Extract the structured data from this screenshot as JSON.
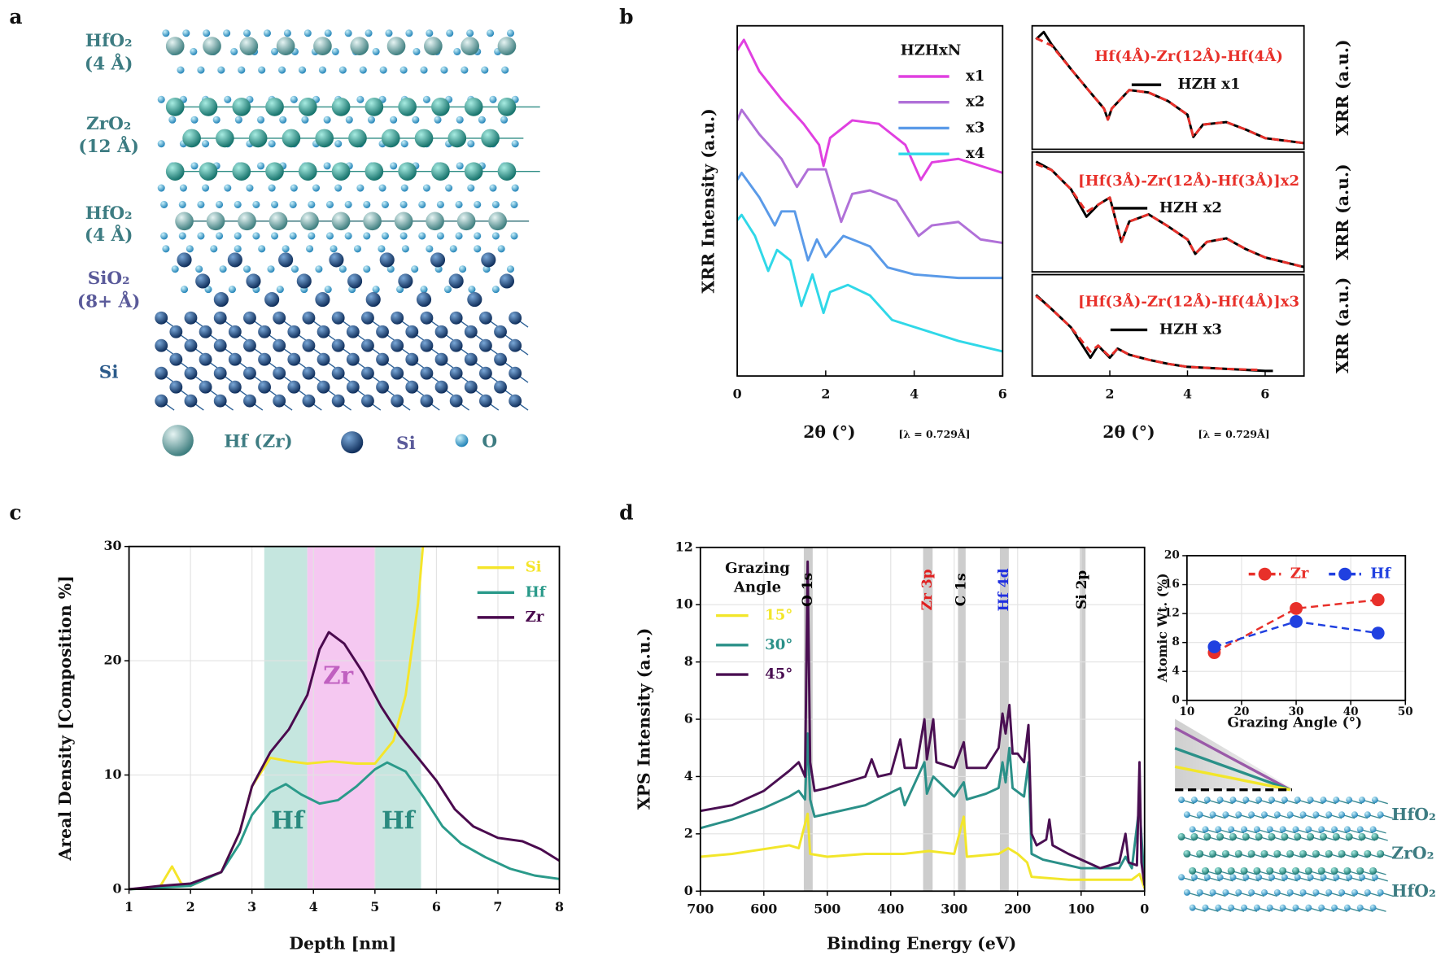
{
  "panel_labels": [
    "a",
    "b",
    "c",
    "d"
  ],
  "structure": {
    "layers": [
      {
        "label": "HfO₂",
        "thickness": "(4 Å)"
      },
      {
        "label": "ZrO₂",
        "thickness": "(12 Å)"
      },
      {
        "label": "HfO₂",
        "thickness": "(4 Å)"
      },
      {
        "label": "SiO₂",
        "thickness": "(8+ Å)"
      },
      {
        "label": "Si"
      }
    ],
    "legend": [
      "Hf (Zr)",
      "Si",
      "O"
    ]
  },
  "layer_stack": {
    "layers": [
      "HfO₂",
      "ZrO₂",
      "HfO₂"
    ]
  },
  "chart_data": [
    {
      "type": "line",
      "ylabel": "XRR Intensity (a.u.)",
      "xlabel": "2θ (°)",
      "xlabel_note": "[λ = 0.729Å]",
      "legend_title": "HZHxN",
      "xlim": [
        0,
        6
      ],
      "xticks": [
        0,
        2,
        4,
        6
      ],
      "ylim": [
        0,
        10
      ],
      "series": [
        {
          "name": "x1",
          "color": "#e040e0",
          "x": [
            0,
            0.15,
            0.5,
            1.0,
            1.5,
            1.85,
            1.95,
            2.1,
            2.6,
            3.2,
            3.8,
            4.15,
            4.4,
            5.0,
            5.5,
            6.0
          ],
          "values": [
            9.3,
            9.6,
            8.7,
            7.9,
            7.2,
            6.6,
            6.0,
            6.8,
            7.3,
            7.2,
            6.6,
            5.6,
            6.1,
            6.2,
            6.0,
            5.8
          ]
        },
        {
          "name": "x2",
          "color": "#b070d8",
          "x": [
            0,
            0.1,
            0.5,
            1.0,
            1.35,
            1.6,
            2.0,
            2.35,
            2.6,
            3.0,
            3.6,
            4.1,
            4.4,
            5.0,
            5.5,
            6.0
          ],
          "values": [
            7.3,
            7.6,
            6.9,
            6.2,
            5.4,
            5.9,
            5.9,
            4.4,
            5.2,
            5.3,
            5.0,
            4.0,
            4.3,
            4.4,
            3.9,
            3.8
          ]
        },
        {
          "name": "x3",
          "color": "#5a9ae8",
          "x": [
            0,
            0.1,
            0.5,
            0.85,
            1.0,
            1.3,
            1.6,
            1.8,
            2.0,
            2.4,
            3.0,
            3.4,
            4.0,
            5.0,
            6.0
          ],
          "values": [
            5.6,
            5.8,
            5.1,
            4.3,
            4.7,
            4.7,
            3.3,
            3.9,
            3.4,
            4.0,
            3.7,
            3.1,
            2.9,
            2.8,
            2.8
          ]
        },
        {
          "name": "x4",
          "color": "#30d8e8",
          "x": [
            0,
            0.1,
            0.4,
            0.7,
            0.9,
            1.2,
            1.45,
            1.7,
            1.95,
            2.1,
            2.5,
            3.0,
            3.5,
            4.0,
            5.0,
            6.0
          ],
          "values": [
            4.45,
            4.6,
            4.0,
            3.0,
            3.6,
            3.3,
            2.0,
            2.9,
            1.8,
            2.4,
            2.6,
            2.3,
            1.6,
            1.4,
            1.0,
            0.7
          ]
        }
      ]
    },
    {
      "type": "line",
      "title": "Hf(4Å)-Zr(12Å)-Hf(4Å)",
      "title_color": "#e8302a",
      "ylabel": "XRR (a.u.)",
      "xlim": [
        0,
        7
      ],
      "ylim": [
        0,
        10
      ],
      "series": [
        {
          "name": "HZH x1",
          "color": "#000000",
          "x": [
            0.1,
            0.3,
            0.5,
            1.0,
            1.5,
            1.85,
            1.95,
            2.05,
            2.5,
            3.0,
            3.5,
            4.0,
            4.15,
            4.4,
            5.0,
            5.5,
            6.0,
            6.5,
            7.0
          ],
          "values": [
            8.9,
            9.5,
            8.5,
            6.5,
            4.6,
            3.3,
            2.4,
            3.3,
            4.8,
            4.6,
            3.9,
            2.8,
            1.0,
            2.0,
            2.2,
            1.6,
            0.9,
            0.7,
            0.5
          ]
        },
        {
          "color": "#e8302a",
          "dash": true,
          "x": [
            0.1,
            0.5,
            1.0,
            1.5,
            1.85,
            1.95,
            2.05,
            2.5,
            3.0,
            3.5,
            4.0,
            4.15,
            4.4,
            5.0,
            5.5,
            6.0,
            6.5,
            7.0
          ],
          "values": [
            9.0,
            8.4,
            6.5,
            4.6,
            3.3,
            2.4,
            3.3,
            4.8,
            4.6,
            3.9,
            2.8,
            1.0,
            2.0,
            2.2,
            1.6,
            0.9,
            0.7,
            0.5
          ]
        }
      ]
    },
    {
      "type": "line",
      "title": "[Hf(3Å)-Zr(12Å)-Hf(3Å)]x2",
      "title_color": "#e8302a",
      "ylabel": "XRR (a.u.)",
      "xlim": [
        0,
        7
      ],
      "ylim": [
        0,
        10
      ],
      "series": [
        {
          "name": "HZH x2",
          "color": "#000000",
          "x": [
            0.1,
            0.5,
            1.0,
            1.4,
            1.7,
            2.0,
            2.3,
            2.5,
            3.0,
            3.5,
            4.0,
            4.2,
            4.5,
            5.0,
            5.5,
            6.0,
            7.0
          ],
          "values": [
            9.2,
            8.5,
            6.9,
            4.6,
            5.6,
            6.2,
            2.5,
            4.2,
            4.8,
            3.8,
            2.7,
            1.5,
            2.5,
            2.8,
            1.9,
            1.2,
            0.4
          ]
        },
        {
          "color": "#e8302a",
          "dash": true,
          "x": [
            0.1,
            0.5,
            1.0,
            1.4,
            1.7,
            2.0,
            2.3,
            2.5,
            3.0,
            3.5,
            4.0,
            4.2,
            4.5,
            5.0,
            5.5,
            6.0,
            7.0
          ],
          "values": [
            9.0,
            8.5,
            6.9,
            5.0,
            5.6,
            6.2,
            2.5,
            4.2,
            4.8,
            3.8,
            2.7,
            1.5,
            2.5,
            2.8,
            1.9,
            1.2,
            0.4
          ]
        }
      ]
    },
    {
      "type": "line",
      "title": "[Hf(3Å)-Zr(12Å)-Hf(4Å)]x3",
      "title_color": "#e8302a",
      "ylabel": "XRR (a.u.)",
      "xlabel": "2θ (°)",
      "xlabel_note": "[λ = 0.729Å]",
      "xlim": [
        0,
        7
      ],
      "xticks": [
        2,
        4,
        6
      ],
      "ylim": [
        0,
        10
      ],
      "series": [
        {
          "name": "HZH x3",
          "color": "#000000",
          "x": [
            0.1,
            0.5,
            1.0,
            1.5,
            1.7,
            2.0,
            2.2,
            2.5,
            3.0,
            3.5,
            4.0,
            5.0,
            6.0,
            6.2
          ],
          "values": [
            8.0,
            6.6,
            4.8,
            1.8,
            3.0,
            1.8,
            2.7,
            2.1,
            1.6,
            1.2,
            0.9,
            0.7,
            0.5,
            0.5
          ]
        },
        {
          "color": "#e8302a",
          "dash": true,
          "x": [
            0.1,
            0.5,
            1.0,
            1.5,
            1.7,
            2.0,
            2.2,
            2.5,
            3.0,
            3.5,
            4.0,
            5.0,
            5.8
          ],
          "values": [
            7.9,
            6.6,
            4.8,
            2.4,
            3.0,
            1.9,
            2.7,
            2.1,
            1.6,
            1.2,
            0.9,
            0.7,
            0.6
          ]
        }
      ]
    },
    {
      "type": "line",
      "xlabel": "Depth [nm]",
      "ylabel": "Areal Density [Composition %]",
      "grid": true,
      "xlim": [
        1,
        8
      ],
      "xticks": [
        1,
        2,
        3,
        4,
        5,
        6,
        7,
        8
      ],
      "ylim": [
        0,
        30
      ],
      "yticks": [
        0,
        10,
        20,
        30
      ],
      "bands": [
        {
          "from": 3.2,
          "to": 3.9,
          "color": "#bfe3dc",
          "label": "Hf",
          "label_color": "#2a8a7f"
        },
        {
          "from": 3.9,
          "to": 5.0,
          "color": "#f4c2f0",
          "label": "Zr",
          "label_color": "#c060c0"
        },
        {
          "from": 5.0,
          "to": 5.75,
          "color": "#bfe3dc",
          "label": "Hf",
          "label_color": "#2a8a7f"
        }
      ],
      "series": [
        {
          "name": "Si",
          "color": "#f5e52a",
          "x": [
            1,
            1.5,
            1.7,
            1.85,
            2.0,
            2.5,
            2.8,
            3.0,
            3.3,
            3.6,
            3.9,
            4.3,
            4.7,
            5.0,
            5.3,
            5.5,
            5.7,
            5.78
          ],
          "values": [
            0,
            0.2,
            2.0,
            0.5,
            0.3,
            1.5,
            5,
            9,
            11.5,
            11.2,
            11,
            11.2,
            11,
            11,
            13,
            17,
            25,
            30
          ]
        },
        {
          "name": "Hf",
          "color": "#2a9a8a",
          "x": [
            1,
            2,
            2.5,
            2.8,
            3.0,
            3.3,
            3.55,
            3.8,
            4.1,
            4.4,
            4.7,
            5.0,
            5.2,
            5.5,
            5.8,
            6.1,
            6.4,
            6.8,
            7.2,
            7.6,
            8.0
          ],
          "values": [
            0,
            0.3,
            1.5,
            4,
            6.5,
            8.5,
            9.2,
            8.3,
            7.5,
            7.8,
            9,
            10.5,
            11.1,
            10.3,
            8,
            5.5,
            4,
            2.8,
            1.8,
            1.2,
            0.9
          ]
        },
        {
          "name": "Zr",
          "color": "#4a0a4e",
          "x": [
            1,
            1.5,
            2,
            2.5,
            2.8,
            3.0,
            3.3,
            3.6,
            3.9,
            4.1,
            4.25,
            4.5,
            4.8,
            5.1,
            5.4,
            5.7,
            6.0,
            6.3,
            6.6,
            7.0,
            7.4,
            7.7,
            8.0
          ],
          "values": [
            0,
            0.3,
            0.5,
            1.5,
            5,
            9,
            12,
            14,
            17,
            21,
            22.5,
            21.5,
            19,
            16,
            13.5,
            11.5,
            9.5,
            7,
            5.5,
            4.5,
            4.2,
            3.5,
            2.5
          ]
        }
      ]
    },
    {
      "type": "line",
      "xlabel": "Binding Energy (eV)",
      "ylabel": "XPS Intensity (a.u.)",
      "grid": true,
      "legend_title": [
        "Grazing",
        "Angle"
      ],
      "xlim": [
        700,
        0
      ],
      "xticks": [
        700,
        600,
        500,
        400,
        300,
        200,
        100,
        0
      ],
      "ylim": [
        0,
        12
      ],
      "yticks": [
        0,
        2,
        4,
        6,
        8,
        10,
        12
      ],
      "bands": [
        {
          "from": 537,
          "to": 523,
          "color": "#c8c8c8",
          "label": "O 1s",
          "label_color": "#000000"
        },
        {
          "from": 349,
          "to": 334,
          "color": "#c8c8c8",
          "label": "Zr 3p",
          "label_color": "#e02020"
        },
        {
          "from": 294,
          "to": 282,
          "color": "#c8c8c8",
          "label": "C 1s",
          "label_color": "#000000"
        },
        {
          "from": 228,
          "to": 214,
          "color": "#c8c8c8",
          "label": "Hf 4d",
          "label_color": "#2030e0"
        },
        {
          "from": 102,
          "to": 93,
          "color": "#c8c8c8",
          "label": "Si 2p",
          "label_color": "#000000"
        }
      ],
      "series": [
        {
          "name": "15°",
          "color": "#f2e62a",
          "x": [
            700,
            650,
            560,
            545,
            531,
            527,
            500,
            440,
            380,
            340,
            300,
            285,
            280,
            230,
            215,
            200,
            185,
            178,
            120,
            50,
            20,
            8,
            0
          ],
          "values": [
            1.2,
            1.3,
            1.6,
            1.5,
            2.7,
            1.3,
            1.2,
            1.3,
            1.3,
            1.4,
            1.3,
            2.6,
            1.2,
            1.3,
            1.5,
            1.3,
            1.0,
            0.5,
            0.4,
            0.4,
            0.4,
            0.6,
            0.1
          ]
        },
        {
          "name": "30°",
          "color": "#2a9088",
          "x": [
            700,
            650,
            600,
            560,
            545,
            535,
            531,
            527,
            520,
            480,
            440,
            385,
            378,
            347,
            343,
            333,
            300,
            285,
            280,
            250,
            230,
            224,
            219,
            213,
            208,
            190,
            183,
            178,
            160,
            120,
            100,
            40,
            30,
            20,
            8,
            0
          ],
          "values": [
            2.2,
            2.5,
            2.9,
            3.3,
            3.5,
            3.2,
            5.5,
            3.2,
            2.6,
            2.8,
            3.0,
            3.6,
            3.0,
            4.5,
            3.4,
            4.0,
            3.3,
            3.8,
            3.2,
            3.4,
            3.6,
            4.5,
            3.8,
            5.0,
            3.6,
            3.3,
            4.5,
            1.3,
            1.1,
            0.9,
            0.8,
            0.8,
            1.2,
            0.8,
            3.0,
            0.2
          ]
        },
        {
          "name": "45°",
          "color": "#4a0f52",
          "x": [
            700,
            650,
            600,
            560,
            545,
            535,
            531,
            527,
            520,
            500,
            470,
            440,
            430,
            420,
            400,
            385,
            378,
            360,
            347,
            343,
            333,
            328,
            300,
            285,
            280,
            250,
            230,
            224,
            219,
            213,
            208,
            200,
            190,
            183,
            178,
            170,
            155,
            150,
            145,
            120,
            100,
            70,
            40,
            30,
            25,
            12,
            8,
            5,
            0
          ],
          "values": [
            2.8,
            3.0,
            3.5,
            4.2,
            4.5,
            4.0,
            11.5,
            4.5,
            3.5,
            3.6,
            3.8,
            4.0,
            4.6,
            4.0,
            4.1,
            5.3,
            4.3,
            4.3,
            6.0,
            4.6,
            6.0,
            4.5,
            4.3,
            5.2,
            4.3,
            4.3,
            5.0,
            6.2,
            5.5,
            6.5,
            4.8,
            4.8,
            4.5,
            5.8,
            2.0,
            1.6,
            1.8,
            2.5,
            1.6,
            1.3,
            1.1,
            0.8,
            1.0,
            2.0,
            1.0,
            0.9,
            4.5,
            1.0,
            0.2
          ]
        }
      ]
    },
    {
      "type": "line",
      "xlabel": "Grazing Angle (°)",
      "ylabel": "Atomic Wt. (%)",
      "grid": true,
      "markers": true,
      "xlim": [
        10,
        50
      ],
      "xticks": [
        10,
        20,
        30,
        40,
        50
      ],
      "ylim": [
        0,
        20
      ],
      "yticks": [
        0,
        4,
        8,
        12,
        16,
        20
      ],
      "x": [
        15,
        30,
        45
      ],
      "series": [
        {
          "name": "Zr",
          "color": "#e8302a",
          "dash": true,
          "values": [
            6.6,
            12.7,
            13.9
          ]
        },
        {
          "name": "Hf",
          "color": "#2040e0",
          "dash": true,
          "values": [
            7.4,
            10.9,
            9.3
          ]
        }
      ]
    }
  ]
}
